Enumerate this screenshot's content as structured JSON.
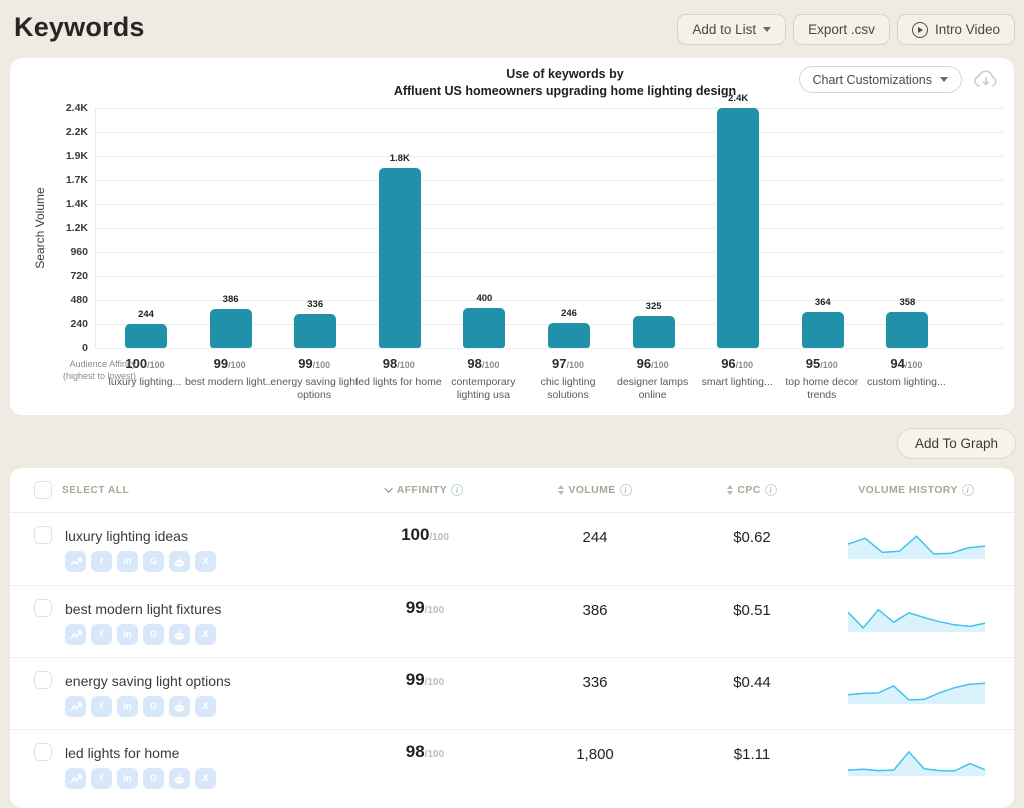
{
  "page": {
    "title": "Keywords",
    "buttons": {
      "add_to_list": "Add to List",
      "export_csv": "Export .csv",
      "intro_video": "Intro Video"
    }
  },
  "chart": {
    "title_line1": "Use of keywords by",
    "title_line2": "Affluent US homeowners upgrading home lighting design",
    "customizations_label": "Chart Customizations",
    "ylabel": "Search Volume",
    "axis_caption_line1": "Audience Affinity",
    "axis_caption_line2": "(highest to lowest)",
    "affinity_suffix": "/100",
    "bar_color": "#2091A8"
  },
  "chart_data": {
    "type": "bar",
    "title": "Use of keywords by Affluent US homeowners upgrading home lighting design",
    "xlabel": "",
    "ylabel": "Search Volume",
    "ylim": [
      0,
      2400
    ],
    "grid": true,
    "ytick_values": [
      0,
      240,
      480,
      720,
      960,
      1200,
      1440,
      1680,
      1920,
      2160,
      2400
    ],
    "ytick_labels": [
      "0",
      "240",
      "480",
      "720",
      "960",
      "1.2K",
      "1.4K",
      "1.7K",
      "1.9K",
      "2.2K",
      "2.4K"
    ],
    "categories": [
      "luxury lighting...",
      "best modern light...",
      "energy saving light options",
      "led lights for home",
      "contemporary lighting usa",
      "chic lighting solutions",
      "designer lamps online",
      "smart lighting...",
      "top home decor trends",
      "custom lighting..."
    ],
    "affinities": [
      "100",
      "99",
      "99",
      "98",
      "98",
      "97",
      "96",
      "96",
      "95",
      "94"
    ],
    "values": [
      244,
      386,
      336,
      1800,
      400,
      246,
      325,
      2400,
      364,
      358
    ],
    "value_labels": [
      "244",
      "386",
      "336",
      "1.8K",
      "400",
      "246",
      "325",
      "2.4K",
      "364",
      "358"
    ]
  },
  "controls": {
    "add_to_graph": "Add To Graph"
  },
  "table": {
    "select_all": "SELECT ALL",
    "affinity_suffix": "/100",
    "spark_line": "#41C3EE",
    "spark_fill": "#DAF2FC",
    "social_icons": [
      "trend-icon",
      "facebook-icon",
      "linkedin-icon",
      "google-icon",
      "reddit-icon",
      "x-icon"
    ],
    "columns": [
      {
        "label": "AFFINITY",
        "sort": "desc",
        "info": true
      },
      {
        "label": "VOLUME",
        "sort": "both",
        "info": true
      },
      {
        "label": "CPC",
        "sort": "both",
        "info": true
      },
      {
        "label": "VOLUME HISTORY",
        "sort": "none",
        "info": true
      }
    ],
    "rows": [
      {
        "keyword": "luxury lighting ideas",
        "affinity": "100",
        "volume": "244",
        "cpc": "$0.62",
        "volume_history": [
          50,
          72,
          18,
          22,
          80,
          12,
          14,
          35,
          42
        ]
      },
      {
        "keyword": "best modern light fixtures",
        "affinity": "99",
        "volume": "386",
        "cpc": "$0.51",
        "volume_history": [
          68,
          8,
          78,
          30,
          66,
          48,
          32,
          20,
          14,
          26
        ]
      },
      {
        "keyword": "energy saving light options",
        "affinity": "99",
        "volume": "336",
        "cpc": "$0.44",
        "volume_history": [
          28,
          33,
          35,
          62,
          8,
          10,
          35,
          55,
          68,
          72
        ]
      },
      {
        "keyword": "led lights for home",
        "affinity": "98",
        "volume": "1,800",
        "cpc": "$1.11",
        "volume_history": [
          15,
          18,
          13,
          15,
          85,
          20,
          13,
          12,
          40,
          16
        ]
      }
    ]
  }
}
